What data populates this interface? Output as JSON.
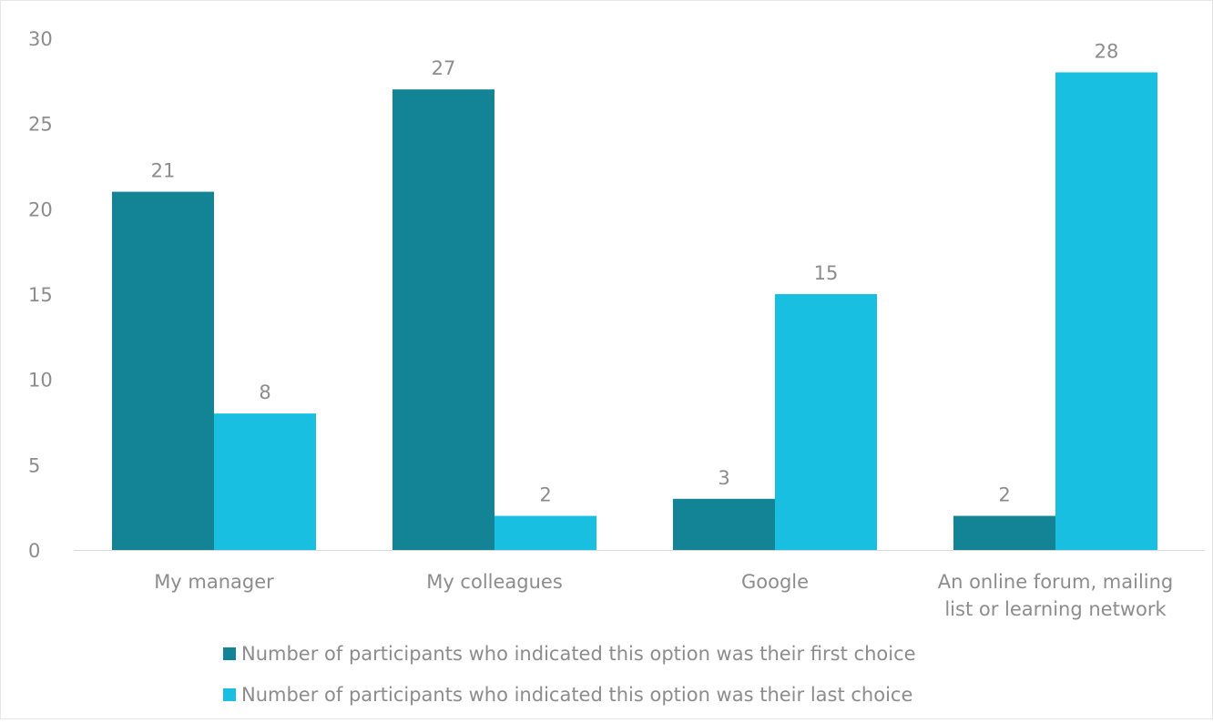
{
  "chart_data": {
    "type": "bar",
    "title": "",
    "xlabel": "",
    "ylabel": "",
    "ylim": [
      0,
      30
    ],
    "yticks": [
      "0",
      "5",
      "10",
      "15",
      "20",
      "25",
      "30"
    ],
    "grid": false,
    "legend_position": "bottom",
    "categories": [
      [
        "My manager"
      ],
      [
        "My colleagues"
      ],
      [
        "Google"
      ],
      [
        "An online forum, mailing",
        "list or learning network"
      ]
    ],
    "series": [
      {
        "name": "Number of participants who indicated this option was their first choice",
        "color": "#138396",
        "values": [
          21,
          27,
          3,
          2
        ]
      },
      {
        "name": "Number of participants who indicated this option was their last choice",
        "color": "#19BFE0",
        "values": [
          8,
          2,
          15,
          28
        ]
      }
    ]
  }
}
